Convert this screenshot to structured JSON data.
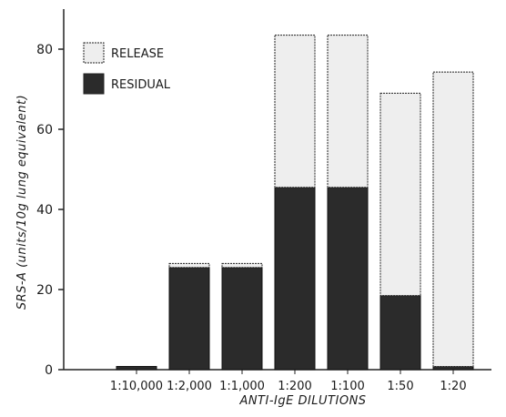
{
  "chart_data": {
    "type": "bar",
    "stacked": true,
    "categories": [
      "1:10,000",
      "1:2,000",
      "1:1,000",
      "1:200",
      "1:100",
      "1:50",
      "1:20"
    ],
    "series": [
      {
        "name": "RESIDUAL",
        "values": [
          0.8,
          25.5,
          25.5,
          45.5,
          45.5,
          18.5,
          0.8
        ],
        "color": "#2b2b2b"
      },
      {
        "name": "RELEASE",
        "values": [
          0,
          1.0,
          1.0,
          38.0,
          38.0,
          50.5,
          73.5
        ],
        "color": "#eeeeee"
      }
    ],
    "xlabel": "ANTI-IgE DILUTIONS",
    "ylabel": "SRS-A (units/10g lung equivalent)",
    "ylim": [
      0,
      90
    ],
    "yticks": [
      0,
      20,
      40,
      60,
      80
    ],
    "grid": false,
    "legend_position": "top-left"
  }
}
